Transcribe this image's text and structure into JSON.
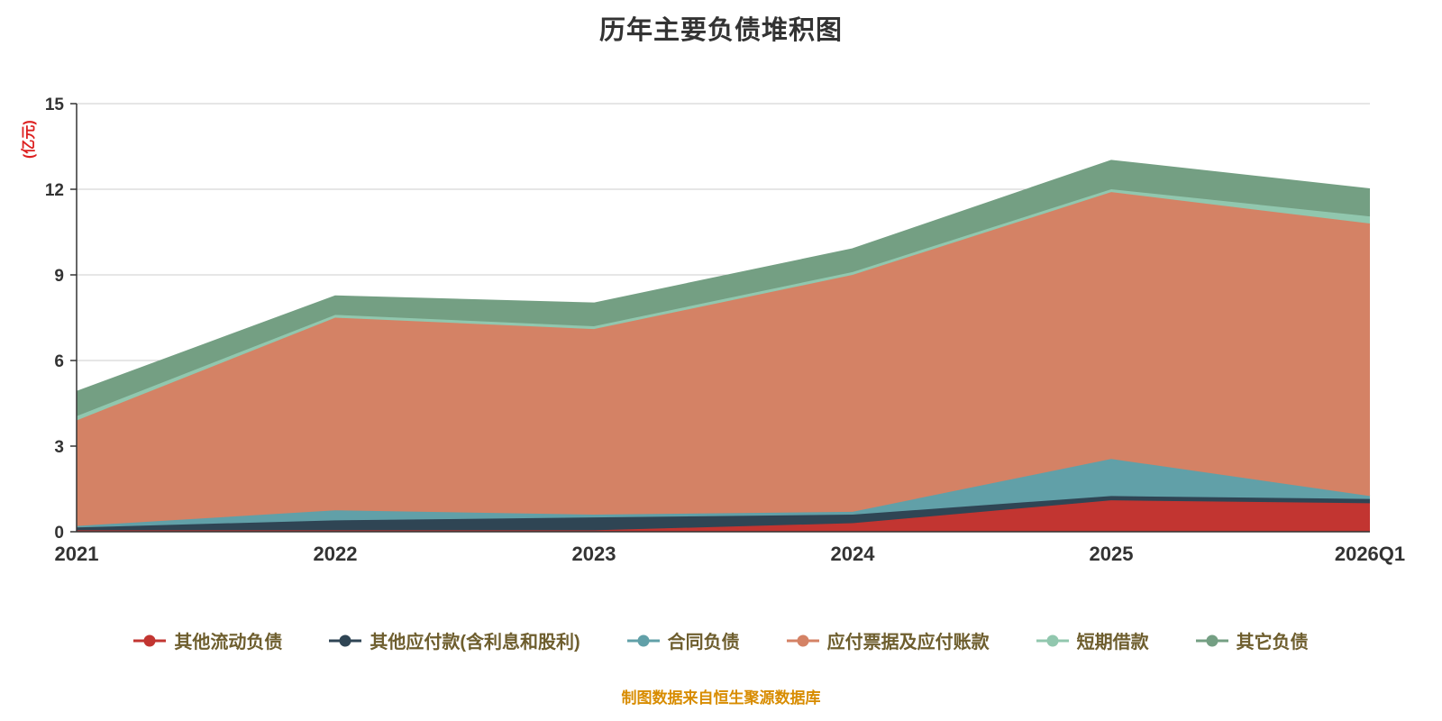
{
  "chart_data": {
    "type": "area",
    "stacked": true,
    "title": "历年主要负债堆积图",
    "unit_label": "(亿元)",
    "footer": "制图数据来自恒生聚源数据库",
    "x": [
      "2021",
      "2022",
      "2023",
      "2024",
      "2025",
      "2026Q1"
    ],
    "ylim": [
      0,
      15
    ],
    "yticks": [
      0,
      3,
      6,
      9,
      12,
      15
    ],
    "grid": true,
    "legend_position": "bottom",
    "series": [
      {
        "name": "其他流动负债",
        "color": "#c23531",
        "values": [
          0.05,
          0.05,
          0.05,
          0.3,
          1.1,
          1.0
        ]
      },
      {
        "name": "其他应付款(含利息和股利)",
        "color": "#2f4554",
        "values": [
          0.1,
          0.35,
          0.45,
          0.3,
          0.15,
          0.15
        ]
      },
      {
        "name": "合同负债",
        "color": "#61a0a8",
        "values": [
          0.05,
          0.35,
          0.1,
          0.1,
          1.3,
          0.1
        ]
      },
      {
        "name": "应付票据及应付账款",
        "color": "#d48265",
        "values": [
          3.7,
          6.75,
          6.5,
          8.3,
          9.35,
          9.55
        ]
      },
      {
        "name": "短期借款",
        "color": "#91c7ae",
        "values": [
          0.15,
          0.1,
          0.1,
          0.1,
          0.1,
          0.25
        ]
      },
      {
        "name": "其它负债",
        "color": "#749f83",
        "values": [
          0.85,
          0.65,
          0.8,
          0.8,
          1.0,
          0.95
        ]
      }
    ],
    "totals": [
      4.9,
      8.25,
      8.0,
      9.9,
      13.0,
      12.0
    ],
    "colors": {
      "title_text": "#333333",
      "axis_text": "#333333",
      "axis_line": "#333333",
      "gridline": "#cccccc",
      "unit_text": "#dd2020",
      "legend_text": "#6e5e2e",
      "footer_text": "#d88c00",
      "background": "#ffffff"
    }
  }
}
